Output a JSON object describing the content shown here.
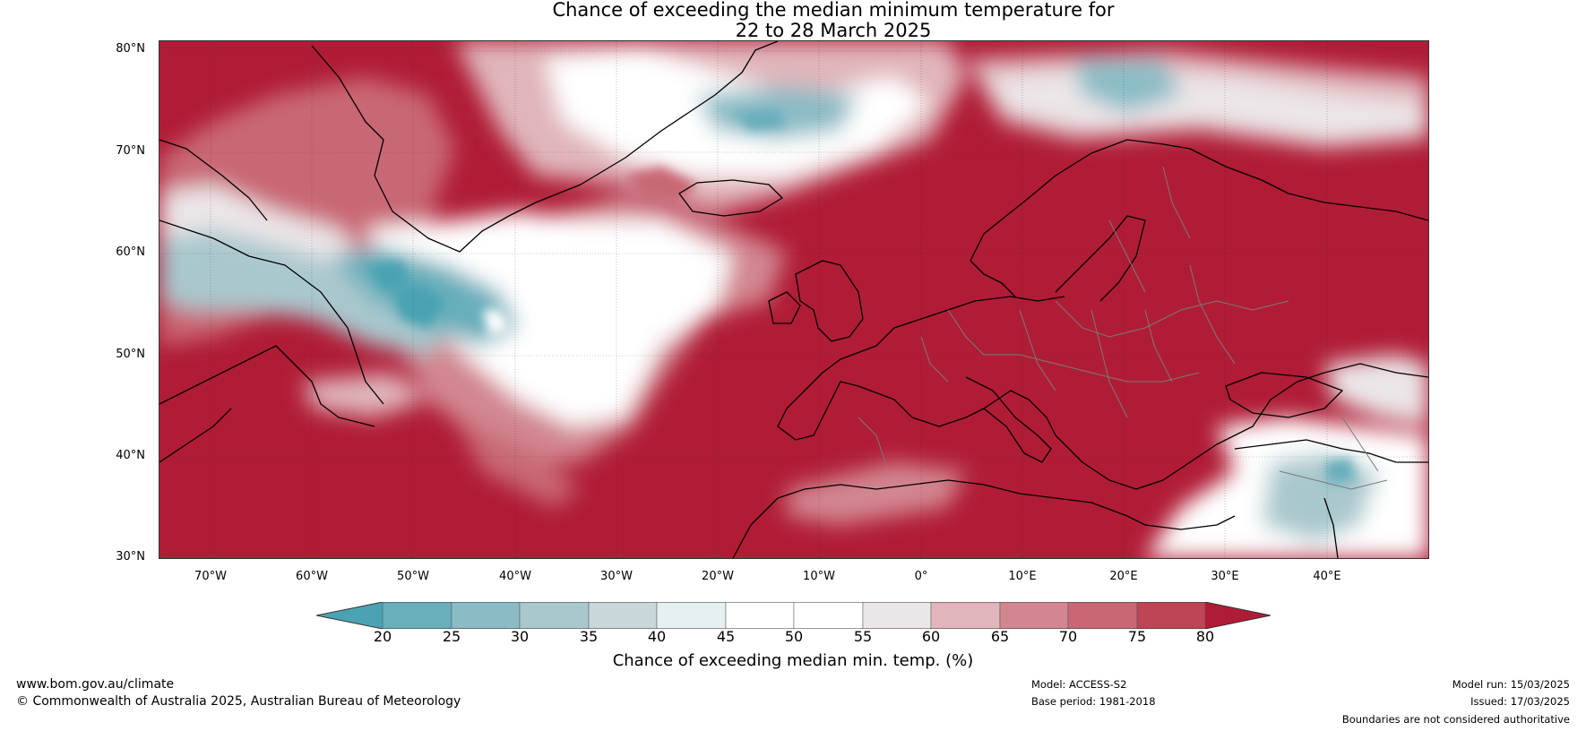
{
  "title": {
    "line1": "Chance of exceeding the median minimum temperature for",
    "line2": "22 to 28 March 2025"
  },
  "map": {
    "region": "North Atlantic and Europe",
    "projection": "equirectangular",
    "lon_range": [
      -75,
      50
    ],
    "lat_range": [
      30,
      81
    ],
    "lat_ticks": [
      "30°N",
      "40°N",
      "50°N",
      "60°N",
      "70°N",
      "80°N"
    ],
    "lon_ticks": [
      "70°W",
      "60°W",
      "50°W",
      "40°W",
      "30°W",
      "20°W",
      "10°W",
      "0°",
      "10°E",
      "20°E",
      "30°E",
      "40°E"
    ],
    "gridlines": true
  },
  "colorbar": {
    "label": "Chance of exceeding median min. temp. (%)",
    "ticks": [
      "20",
      "25",
      "30",
      "35",
      "40",
      "45",
      "50",
      "55",
      "60",
      "65",
      "70",
      "75",
      "80"
    ],
    "colors": {
      "below_20": "#4aa3b2",
      "20_25": "#68aebb",
      "25_30": "#8bbcc6",
      "30_35": "#a9c8cd",
      "35_40": "#c9d6da",
      "40_45": "#e6eff1",
      "45_50": "#ffffff",
      "50_55": "#ffffff",
      "55_60": "#ebe6e8",
      "60_65": "#e0b5bb",
      "65_70": "#d28690",
      "70_75": "#c96874",
      "75_80": "#bd4556",
      "above_80": "#b01c36"
    }
  },
  "footer": {
    "website": "www.bom.gov.au/climate",
    "copyright": "© Commonwealth of Australia 2025, Australian Bureau of Meteorology",
    "model": "Model: ACCESS-S2",
    "base_period": "Base period: 1981-2018",
    "model_run": "Model run: 15/03/2025",
    "issued": "Issued: 17/03/2025",
    "disclaimer": "Boundaries are not considered authoritative"
  }
}
